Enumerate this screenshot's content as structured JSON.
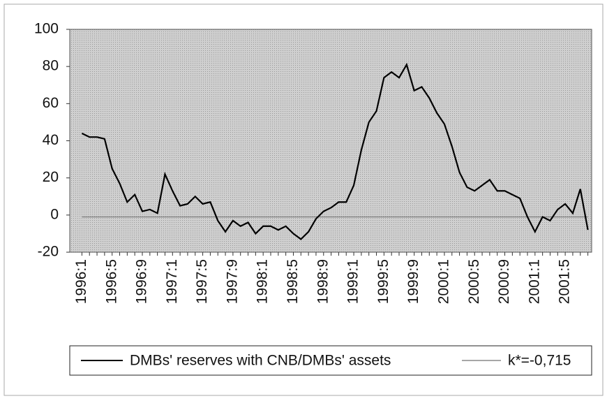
{
  "chart_data": {
    "type": "line",
    "categories": [
      "1996:1",
      null,
      null,
      null,
      "1996:5",
      null,
      null,
      null,
      "1996:9",
      null,
      null,
      null,
      "1997:1",
      null,
      null,
      null,
      "1997:5",
      null,
      null,
      null,
      "1997:9",
      null,
      null,
      null,
      "1998:1",
      null,
      null,
      null,
      "1998:5",
      null,
      null,
      null,
      "1998:9",
      null,
      null,
      null,
      "1999:1",
      null,
      null,
      null,
      "1999:5",
      null,
      null,
      null,
      "1999:9",
      null,
      null,
      null,
      "2000:1",
      null,
      null,
      null,
      "2000:5",
      null,
      null,
      null,
      "2000:9",
      null,
      null,
      null,
      "2001:1",
      null,
      null,
      null,
      "2001:5",
      null,
      null,
      null
    ],
    "series": [
      {
        "name": "DMBs' reserves with CNB/DMBs' assets",
        "color": "#000000",
        "values": [
          44,
          42,
          42,
          41,
          25,
          17,
          7,
          11,
          2,
          3,
          1,
          22,
          13,
          5,
          6,
          10,
          6,
          7,
          -3,
          -9,
          -3,
          -6,
          -4,
          -10,
          -6,
          -6,
          -8,
          -6,
          -10,
          -13,
          -9,
          -2,
          2,
          4,
          7,
          7,
          16,
          35,
          50,
          56,
          74,
          77,
          74,
          81,
          67,
          69,
          63,
          55,
          49,
          37,
          23,
          15,
          13,
          16,
          19,
          13,
          13,
          11,
          9,
          -1,
          -9,
          -1,
          -3,
          3,
          6,
          1,
          14,
          -8
        ]
      },
      {
        "name": "k*=-0,715",
        "color": "#8a8a8a",
        "values": [
          -1,
          -1,
          -1,
          -1,
          -1,
          -1,
          -1,
          -1,
          -1,
          -1,
          -1,
          -1,
          -1,
          -1,
          -1,
          -1,
          -1,
          -1,
          -1,
          -1,
          -1,
          -1,
          -1,
          -1,
          -1,
          -1,
          -1,
          -1,
          -1,
          -1,
          -1,
          -1,
          -1,
          -1,
          -1,
          -1,
          -1,
          -1,
          -1,
          -1,
          -1,
          -1,
          -1,
          -1,
          -1,
          -1,
          -1,
          -1,
          -1,
          -1,
          -1,
          -1,
          -1,
          -1,
          -1,
          -1,
          -1,
          -1,
          -1,
          -1,
          -1,
          -1,
          -1,
          -1,
          -1,
          -1,
          -1,
          -1
        ]
      }
    ],
    "ylim": [
      -20,
      100
    ],
    "yticks": [
      -20,
      0,
      20,
      40,
      60,
      80,
      100
    ],
    "legend": "bottom"
  }
}
